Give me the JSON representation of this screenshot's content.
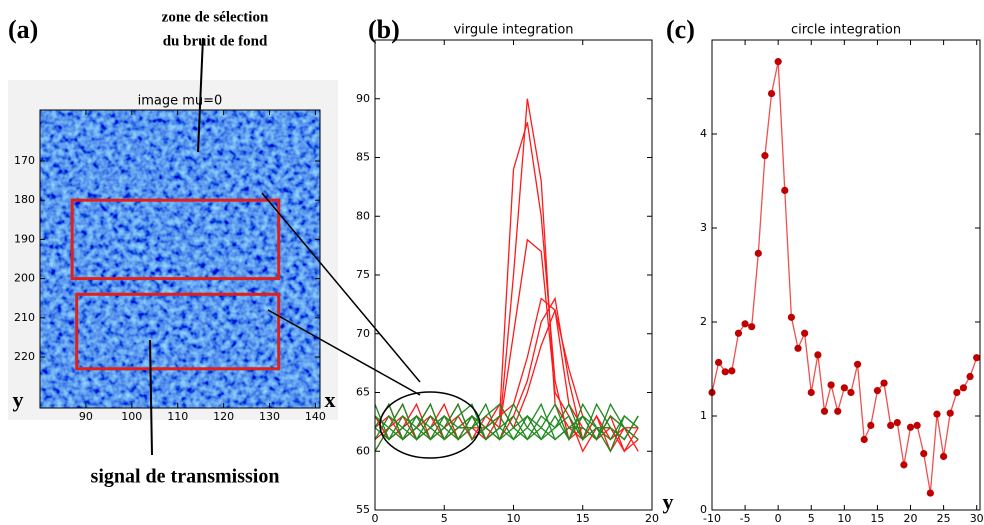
{
  "chart_data": [
    {
      "type": "image",
      "panel_label": "(a)",
      "title": "image mu=0",
      "annotations": [
        "zone de sélection",
        "du bruit de fond",
        "signal de transmission"
      ],
      "xlabel": "x",
      "ylabel": "y",
      "xlim": [
        80,
        141
      ],
      "ylim": [
        157,
        233
      ],
      "xticks": [
        90,
        100,
        110,
        120,
        130,
        140
      ],
      "yticks": [
        170,
        180,
        190,
        200,
        210,
        220
      ],
      "regions": [
        [
          87,
          132,
          180,
          200
        ],
        [
          88,
          132,
          204,
          223
        ]
      ],
      "region_color": "#e0201a"
    },
    {
      "type": "line",
      "panel_label": "(b)",
      "title": "virgule integration",
      "xlabel": "y",
      "xlim": [
        0,
        20
      ],
      "ylim": [
        55,
        95
      ],
      "xticks": [
        0,
        5,
        10,
        15,
        20
      ],
      "yticks": [
        55,
        60,
        65,
        70,
        75,
        80,
        85,
        90
      ],
      "x": [
        0,
        1,
        2,
        3,
        4,
        5,
        6,
        7,
        8,
        9,
        10,
        11,
        12,
        13,
        14,
        15,
        16,
        17,
        18,
        19
      ],
      "series": [
        {
          "color": "#ff1a1a",
          "values": [
            62,
            63,
            61,
            62,
            64,
            61,
            62,
            63,
            61,
            62,
            75,
            90,
            83,
            64,
            62,
            61,
            63,
            60,
            62,
            61
          ]
        },
        {
          "color": "#ff1a1a",
          "values": [
            61,
            62,
            64,
            61,
            62,
            63,
            61,
            62,
            62,
            63,
            84,
            88,
            80,
            66,
            61,
            62,
            61,
            63,
            60,
            62
          ]
        },
        {
          "color": "#ff1a1a",
          "values": [
            63,
            61,
            62,
            63,
            61,
            62,
            64,
            61,
            63,
            62,
            70,
            78,
            77,
            65,
            63,
            60,
            62,
            62,
            61,
            63
          ]
        },
        {
          "color": "#ff1a1a",
          "values": [
            62,
            64,
            61,
            62,
            63,
            61,
            62,
            62,
            61,
            63,
            64,
            68,
            73,
            72,
            64,
            62,
            61,
            63,
            62,
            60
          ]
        },
        {
          "color": "#ff1a1a",
          "values": [
            60,
            62,
            63,
            61,
            62,
            64,
            61,
            63,
            62,
            61,
            63,
            66,
            71,
            73,
            66,
            61,
            63,
            61,
            62,
            62
          ]
        },
        {
          "color": "#ff1a1a",
          "values": [
            63,
            61,
            62,
            64,
            61,
            62,
            63,
            61,
            62,
            64,
            62,
            65,
            69,
            72,
            67,
            63,
            61,
            62,
            60,
            61
          ]
        },
        {
          "color": "#1f8a1f",
          "values": [
            62,
            61,
            63,
            62,
            64,
            61,
            62,
            63,
            61,
            62,
            63,
            61,
            62,
            64,
            61,
            63,
            62,
            61,
            63,
            62
          ]
        },
        {
          "color": "#1f8a1f",
          "values": [
            61,
            63,
            62,
            61,
            62,
            63,
            61,
            62,
            64,
            61,
            62,
            63,
            61,
            62,
            63,
            61,
            64,
            62,
            61,
            63
          ]
        },
        {
          "color": "#1f8a1f",
          "values": [
            63,
            62,
            61,
            63,
            61,
            62,
            64,
            61,
            62,
            63,
            61,
            62,
            64,
            61,
            62,
            62,
            61,
            63,
            62,
            61
          ]
        },
        {
          "color": "#1f8a1f",
          "values": [
            60,
            62,
            64,
            61,
            63,
            62,
            61,
            63,
            62,
            61,
            64,
            62,
            61,
            63,
            61,
            64,
            62,
            62,
            61,
            63
          ]
        },
        {
          "color": "#1f8a1f",
          "values": [
            62,
            64,
            61,
            62,
            61,
            63,
            62,
            62,
            63,
            64,
            62,
            61,
            63,
            62,
            64,
            61,
            62,
            60,
            63,
            62
          ]
        },
        {
          "color": "#1f8a1f",
          "values": [
            64,
            61,
            62,
            63,
            62,
            61,
            63,
            64,
            61,
            62,
            61,
            63,
            62,
            61,
            62,
            63,
            61,
            64,
            62,
            61
          ]
        }
      ]
    },
    {
      "type": "line",
      "panel_label": "(c)",
      "title": "circle integration",
      "markers": true,
      "xlim": [
        -10,
        30.5
      ],
      "ylim": [
        0,
        5
      ],
      "xticks": [
        -10,
        -5,
        0,
        5,
        10,
        15,
        20,
        25,
        30
      ],
      "yticks": [
        0,
        1,
        2,
        3,
        4
      ],
      "x": [
        -10,
        -9,
        -8,
        -7,
        -6,
        -5,
        -4,
        -3,
        -2,
        -1,
        0,
        1,
        2,
        3,
        4,
        5,
        6,
        7,
        8,
        9,
        10,
        11,
        12,
        13,
        14,
        15,
        16,
        17,
        18,
        19,
        20,
        21,
        22,
        23,
        24,
        25,
        26,
        27,
        28,
        29,
        30
      ],
      "series": [
        {
          "color": "#f05050",
          "marker_color": "#c00000",
          "values": [
            1.25,
            1.57,
            1.47,
            1.48,
            1.88,
            1.98,
            1.95,
            2.73,
            3.77,
            4.43,
            4.77,
            3.4,
            2.05,
            1.72,
            1.88,
            1.25,
            1.65,
            1.05,
            1.33,
            1.05,
            1.3,
            1.25,
            1.55,
            0.75,
            0.9,
            1.27,
            1.35,
            0.9,
            0.93,
            0.48,
            0.88,
            0.9,
            0.6,
            0.18,
            1.02,
            0.57,
            1.03,
            1.25,
            1.3,
            1.42,
            1.62
          ]
        }
      ]
    }
  ]
}
